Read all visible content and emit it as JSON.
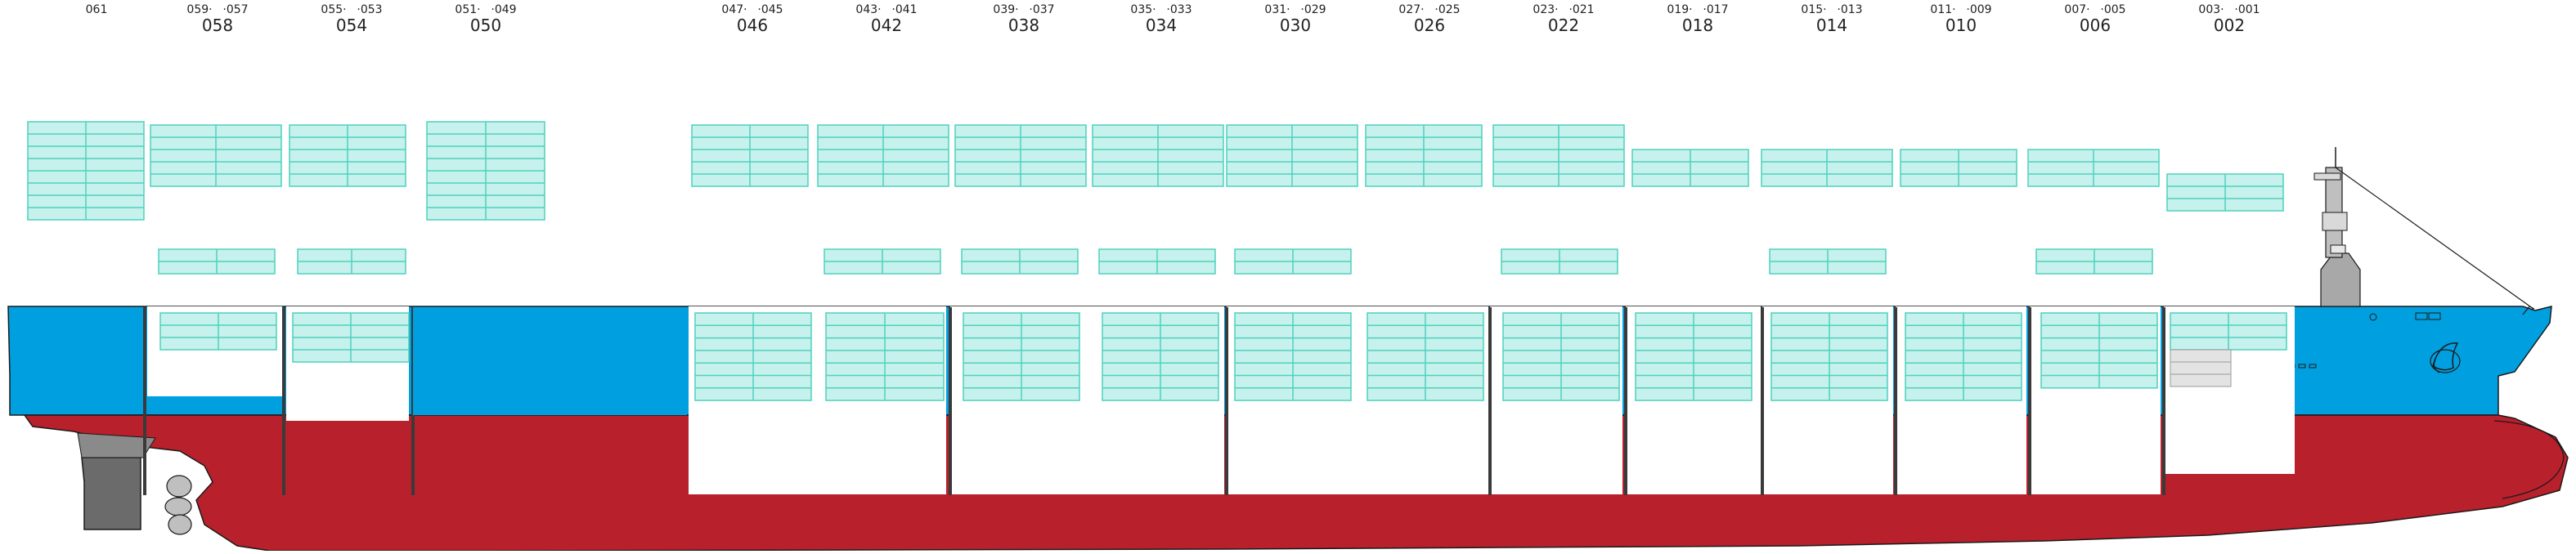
{
  "colors": {
    "hull_red": "#b8202b",
    "hull_blue": "#00a0e0",
    "container_fill": "#c6f1ec",
    "container_stroke": "#4fd1be",
    "hold_divider": "#3a3a3a",
    "grey_container": "#e3e3e3"
  },
  "bays": [
    {
      "bay": "",
      "left": "061",
      "right": ""
    },
    {
      "bay": "058",
      "left": "059",
      "right": "057"
    },
    {
      "bay": "054",
      "left": "055",
      "right": "053"
    },
    {
      "bay": "050",
      "left": "051",
      "right": "049"
    },
    {
      "bay": "046",
      "left": "047",
      "right": "045"
    },
    {
      "bay": "042",
      "left": "043",
      "right": "041"
    },
    {
      "bay": "038",
      "left": "039",
      "right": "037"
    },
    {
      "bay": "034",
      "left": "035",
      "right": "033"
    },
    {
      "bay": "030",
      "left": "031",
      "right": "029"
    },
    {
      "bay": "026",
      "left": "027",
      "right": "025"
    },
    {
      "bay": "022",
      "left": "023",
      "right": "021"
    },
    {
      "bay": "018",
      "left": "019",
      "right": "017"
    },
    {
      "bay": "014",
      "left": "015",
      "right": "013"
    },
    {
      "bay": "010",
      "left": "011",
      "right": "009"
    },
    {
      "bay": "006",
      "left": "007",
      "right": "005"
    },
    {
      "bay": "002",
      "left": "003",
      "right": "001"
    }
  ]
}
